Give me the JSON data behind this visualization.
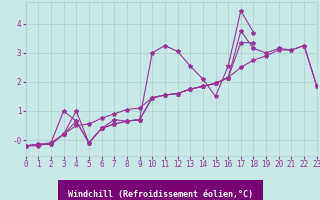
{
  "background_color": "#c8e8e8",
  "line_color": "#993399",
  "grid_color": "#aacece",
  "xlabel": "Windchill (Refroidissement éolien,°C)",
  "xlabel_fontsize": 6,
  "tick_fontsize": 5.5,
  "xlim": [
    0,
    23
  ],
  "ylim": [
    -0.55,
    4.75
  ],
  "yticks": [
    0,
    1,
    2,
    3,
    4
  ],
  "ytick_labels": [
    "-0",
    "1",
    "2",
    "3",
    "4"
  ],
  "xticks": [
    0,
    1,
    2,
    3,
    4,
    5,
    6,
    7,
    8,
    9,
    10,
    11,
    12,
    13,
    14,
    15,
    16,
    17,
    18,
    19,
    20,
    21,
    22,
    23
  ],
  "line1_x": [
    0,
    1,
    2,
    3,
    4,
    5,
    6,
    7,
    8,
    9,
    10,
    11,
    12,
    13,
    14,
    15,
    16,
    17,
    18,
    19,
    20,
    21,
    22,
    23
  ],
  "line1_y": [
    -0.2,
    -0.2,
    -0.1,
    0.2,
    0.5,
    0.55,
    0.75,
    0.9,
    1.05,
    1.1,
    1.45,
    1.55,
    1.6,
    1.75,
    1.85,
    1.95,
    2.15,
    2.5,
    2.75,
    2.9,
    3.1,
    3.1,
    3.25,
    1.85
  ],
  "line2_x": [
    0,
    1,
    2,
    3,
    4,
    5,
    6,
    7,
    8,
    9,
    10,
    11,
    12,
    13,
    14,
    15,
    16,
    17,
    18,
    19,
    20,
    21,
    22,
    23
  ],
  "line2_y": [
    -0.2,
    -0.15,
    -0.1,
    1.0,
    0.65,
    -0.1,
    0.4,
    0.7,
    0.65,
    0.7,
    1.45,
    1.55,
    1.6,
    1.75,
    1.85,
    1.95,
    2.15,
    3.75,
    3.15,
    3.0,
    3.15,
    3.1,
    3.25,
    1.85
  ],
  "line3_x": [
    0,
    1,
    2,
    3,
    4,
    5,
    6,
    7,
    8,
    9,
    10,
    11,
    12,
    13,
    14,
    15,
    16,
    17,
    18
  ],
  "line3_y": [
    -0.2,
    -0.15,
    -0.15,
    0.2,
    0.65,
    -0.1,
    0.4,
    0.55,
    0.65,
    0.7,
    3.0,
    3.25,
    3.05,
    2.55,
    2.1,
    1.5,
    2.55,
    4.45,
    3.7
  ],
  "line4_x": [
    0,
    1,
    2,
    3,
    4,
    5,
    6,
    7,
    8,
    9,
    10,
    11,
    12,
    13,
    14,
    15,
    16,
    17,
    18
  ],
  "line4_y": [
    -0.2,
    -0.15,
    -0.15,
    0.2,
    1.0,
    -0.1,
    0.4,
    0.55,
    0.65,
    0.7,
    1.45,
    1.55,
    1.6,
    1.75,
    1.85,
    1.95,
    2.15,
    3.35,
    3.35
  ]
}
